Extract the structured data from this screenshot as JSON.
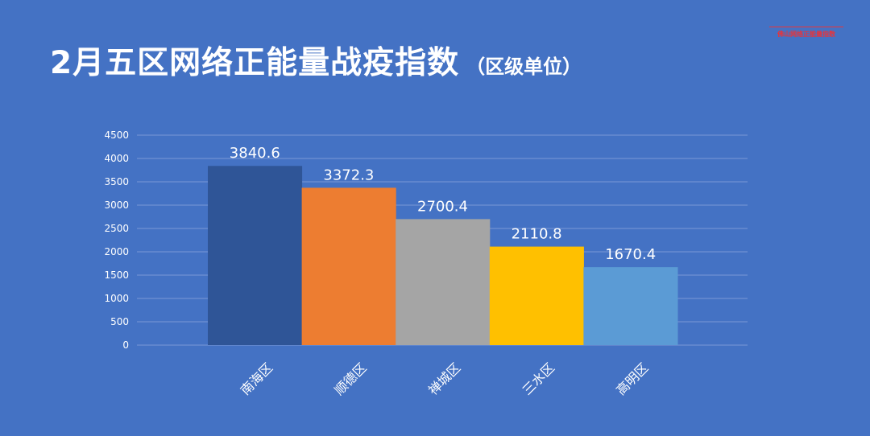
{
  "brand": "佛山网络正能量指数",
  "title": "2月五区网络正能量战疫指数",
  "subtitle": "（区级单位）",
  "colors": {
    "background": "#4472c4",
    "gridline": "#7a98d6"
  },
  "chart_data": {
    "type": "bar",
    "categories": [
      "南海区",
      "顺德区",
      "禅城区",
      "三水区",
      "高明区"
    ],
    "values": [
      3840.6,
      3372.3,
      2700.4,
      2110.8,
      1670.4
    ],
    "value_labels": [
      "3840.6",
      "3372.3",
      "2700.4",
      "2110.8",
      "1670.4"
    ],
    "bar_colors": [
      "#2f5597",
      "#ed7d31",
      "#a5a5a5",
      "#ffc000",
      "#5b9bd5"
    ],
    "ylim": [
      0,
      4500
    ],
    "yticks": [
      0,
      500,
      1000,
      1500,
      2000,
      2500,
      3000,
      3500,
      4000,
      4500
    ],
    "grid": true,
    "legend": "none"
  }
}
